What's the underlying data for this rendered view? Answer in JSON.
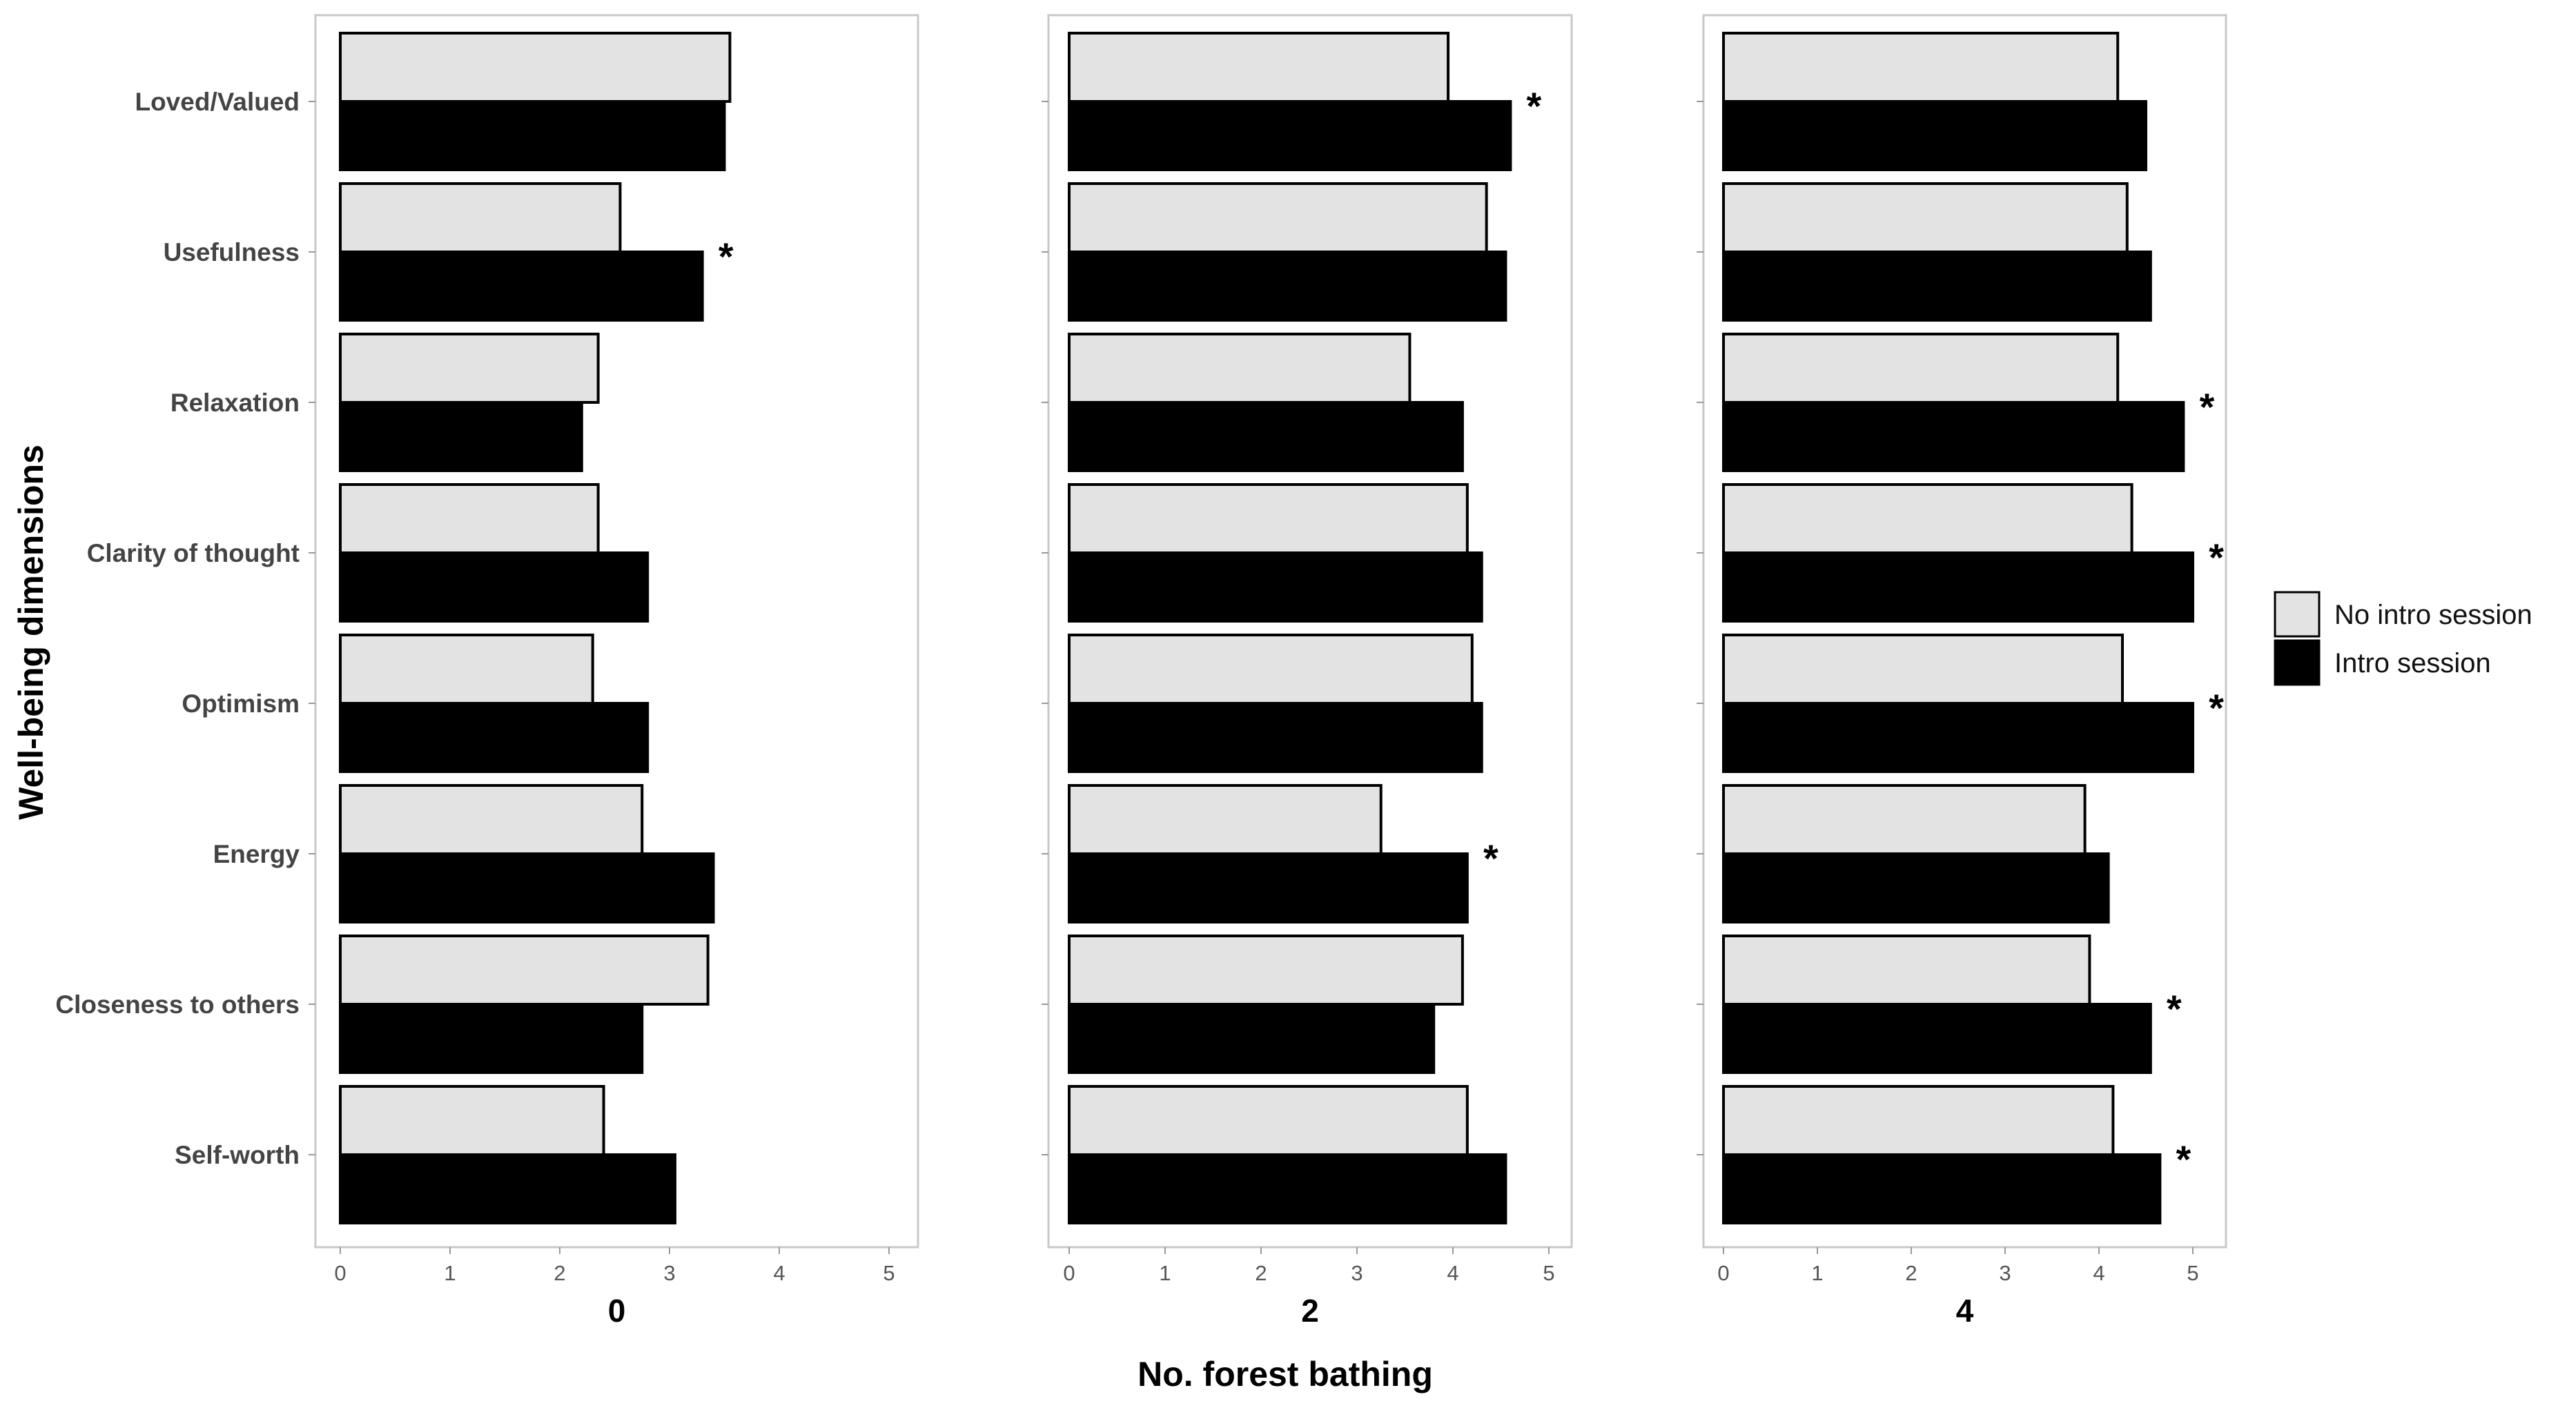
{
  "chart_data": {
    "type": "bar",
    "orientation": "horizontal",
    "ylabel": "Well-being dimensions",
    "xlabel": "No. forest bathing",
    "categories": [
      "Loved/Valued",
      "Usefulness",
      "Relaxation",
      "Clarity of thought",
      "Optimism",
      "Energy",
      "Closeness to others",
      "Self-worth"
    ],
    "xlim": [
      0,
      5
    ],
    "x_ticks": [
      "0",
      "1",
      "2",
      "3",
      "4",
      "5"
    ],
    "series_names": [
      "No intro session",
      "Intro session"
    ],
    "series_colors": [
      "#e3e3e3",
      "#000000"
    ],
    "significance_marker": "*",
    "facets": [
      {
        "label": "0",
        "series": [
          {
            "name": "No intro session",
            "values": [
              3.55,
              2.55,
              2.35,
              2.35,
              2.3,
              2.75,
              3.35,
              2.4
            ]
          },
          {
            "name": "Intro session",
            "values": [
              3.5,
              3.3,
              2.2,
              2.8,
              2.8,
              3.4,
              2.75,
              3.05
            ]
          }
        ],
        "significant": [
          "Usefulness"
        ]
      },
      {
        "label": "2",
        "series": [
          {
            "name": "No intro session",
            "values": [
              3.95,
              4.35,
              3.55,
              4.15,
              4.2,
              3.25,
              4.1,
              4.15
            ]
          },
          {
            "name": "Intro session",
            "values": [
              4.6,
              4.55,
              4.1,
              4.3,
              4.3,
              4.15,
              3.8,
              4.55
            ]
          }
        ],
        "significant": [
          "Loved/Valued",
          "Energy"
        ]
      },
      {
        "label": "4",
        "series": [
          {
            "name": "No intro session",
            "values": [
              4.2,
              4.3,
              4.2,
              4.35,
              4.25,
              3.85,
              3.9,
              4.15
            ]
          },
          {
            "name": "Intro session",
            "values": [
              4.5,
              4.55,
              4.9,
              5.0,
              5.0,
              4.1,
              4.55,
              4.65
            ]
          }
        ],
        "significant": [
          "Relaxation",
          "Clarity of thought",
          "Optimism",
          "Closeness to others",
          "Self-worth"
        ]
      }
    ],
    "legend_position": "right",
    "grid": false
  }
}
